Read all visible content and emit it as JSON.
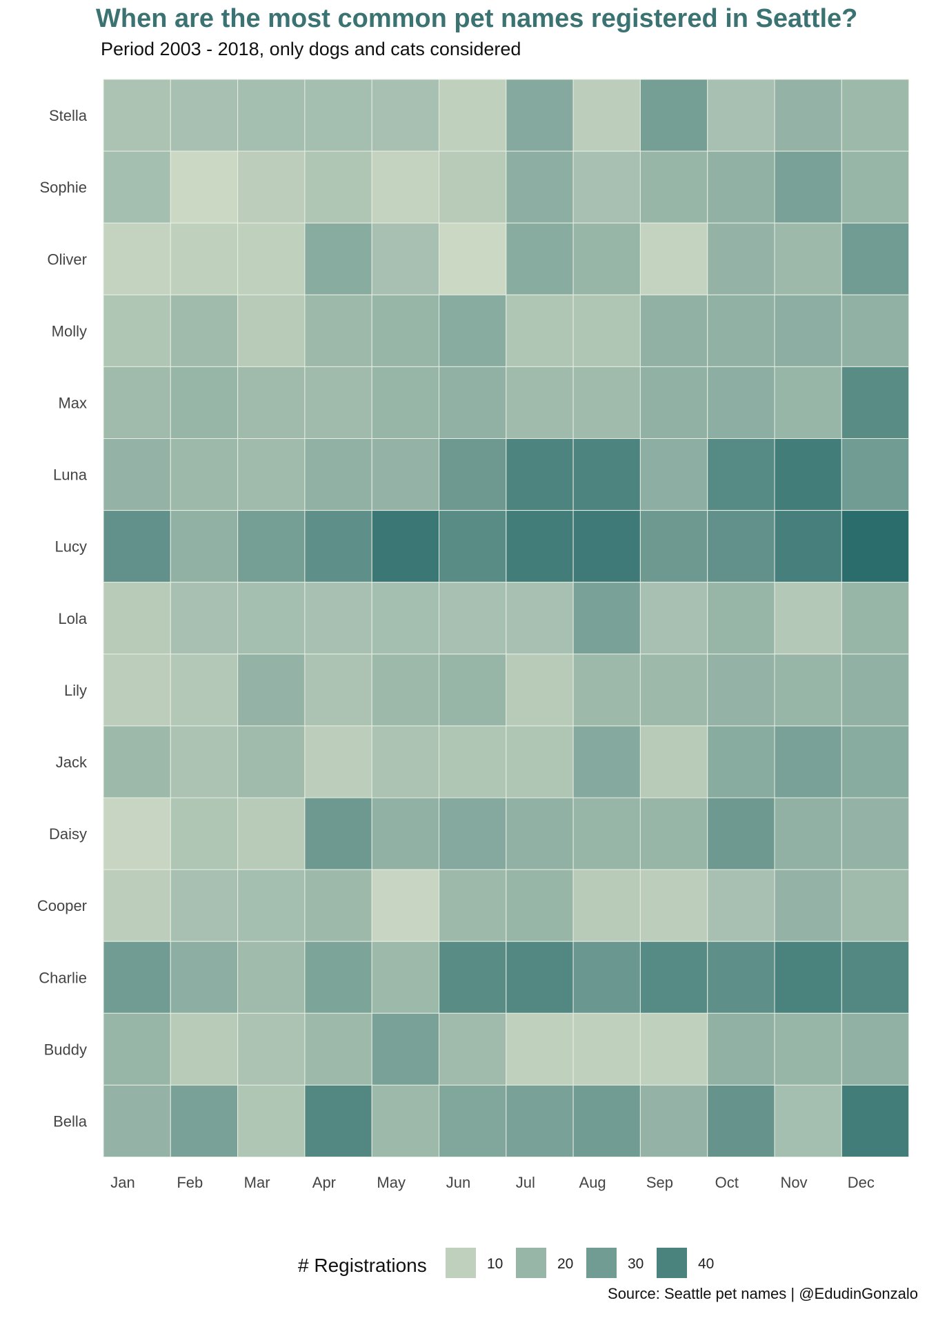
{
  "chart_data": {
    "type": "heatmap",
    "title": "When are the most common pet names registered in Seattle?",
    "subtitle": "Period 2003 - 2018, only dogs and cats considered",
    "caption": "Source: Seattle pet names | @EdudinGonzalo",
    "x_categories": [
      "Jan",
      "Feb",
      "Mar",
      "Apr",
      "May",
      "Jun",
      "Jul",
      "Aug",
      "Sep",
      "Oct",
      "Nov",
      "Dec"
    ],
    "y_categories": [
      "Stella",
      "Sophie",
      "Oliver",
      "Molly",
      "Max",
      "Luna",
      "Lucy",
      "Lola",
      "Lily",
      "Jack",
      "Daisy",
      "Cooper",
      "Charlie",
      "Buddy",
      "Bella"
    ],
    "values": [
      [
        15,
        16,
        17,
        17,
        16,
        10,
        25,
        11,
        29,
        16,
        21,
        19
      ],
      [
        17,
        7,
        11,
        14,
        9,
        12,
        23,
        16,
        20,
        22,
        28,
        20
      ],
      [
        9,
        10,
        10,
        24,
        16,
        7,
        24,
        20,
        9,
        21,
        19,
        30
      ],
      [
        14,
        18,
        12,
        19,
        20,
        24,
        14,
        14,
        22,
        22,
        23,
        22
      ],
      [
        18,
        20,
        18,
        18,
        20,
        22,
        18,
        18,
        22,
        23,
        20,
        36
      ],
      [
        21,
        19,
        18,
        22,
        21,
        31,
        39,
        39,
        23,
        37,
        42,
        30
      ],
      [
        34,
        22,
        29,
        35,
        44,
        36,
        42,
        43,
        31,
        34,
        41,
        48
      ],
      [
        12,
        16,
        17,
        16,
        17,
        16,
        16,
        28,
        16,
        20,
        13,
        20
      ],
      [
        11,
        13,
        21,
        15,
        19,
        20,
        12,
        19,
        19,
        21,
        20,
        22
      ],
      [
        19,
        15,
        18,
        11,
        15,
        14,
        14,
        25,
        12,
        24,
        28,
        24
      ],
      [
        8,
        14,
        12,
        31,
        22,
        25,
        22,
        20,
        20,
        31,
        22,
        21
      ],
      [
        11,
        16,
        17,
        19,
        8,
        19,
        20,
        12,
        11,
        16,
        21,
        18
      ],
      [
        30,
        23,
        18,
        27,
        19,
        36,
        38,
        32,
        37,
        35,
        40,
        38
      ],
      [
        20,
        12,
        15,
        19,
        28,
        18,
        10,
        10,
        10,
        22,
        20,
        22
      ],
      [
        21,
        28,
        14,
        38,
        19,
        26,
        28,
        30,
        21,
        33,
        17,
        42
      ]
    ],
    "legend": {
      "title": "# Registrations",
      "ticks": [
        10,
        20,
        30,
        40
      ],
      "position": "bottom"
    },
    "colors": {
      "low": "#d3ddc8",
      "high": "#2b6d6d",
      "title": "#3b7372",
      "gridline": "#e8eee4"
    },
    "grid": false
  }
}
